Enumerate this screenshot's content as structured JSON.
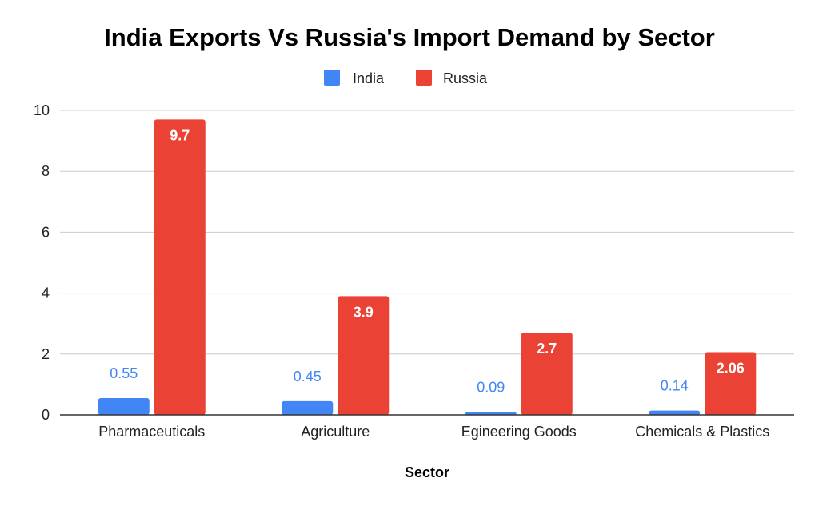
{
  "chart_data": {
    "type": "bar",
    "title": "India Exports Vs Russia's Import Demand by Sector",
    "xlabel": "Sector",
    "ylabel": "",
    "categories": [
      "Pharmaceuticals",
      "Agriculture",
      "Egineering Goods",
      "Chemicals & Plastics"
    ],
    "series": [
      {
        "name": "India",
        "color": "#4285f4",
        "values": [
          0.55,
          0.45,
          0.09,
          0.14
        ],
        "labels": [
          "0.55",
          "0.45",
          "0.09",
          "0.14"
        ]
      },
      {
        "name": "Russia",
        "color": "#ea4335",
        "values": [
          9.7,
          3.9,
          2.7,
          2.06
        ],
        "labels": [
          "9.7",
          "3.9",
          "2.7",
          "2.06"
        ]
      }
    ],
    "ylim": [
      0,
      10
    ],
    "yticks": [
      0,
      2,
      4,
      6,
      8,
      10
    ],
    "grid": true,
    "legend_position": "top-center"
  }
}
